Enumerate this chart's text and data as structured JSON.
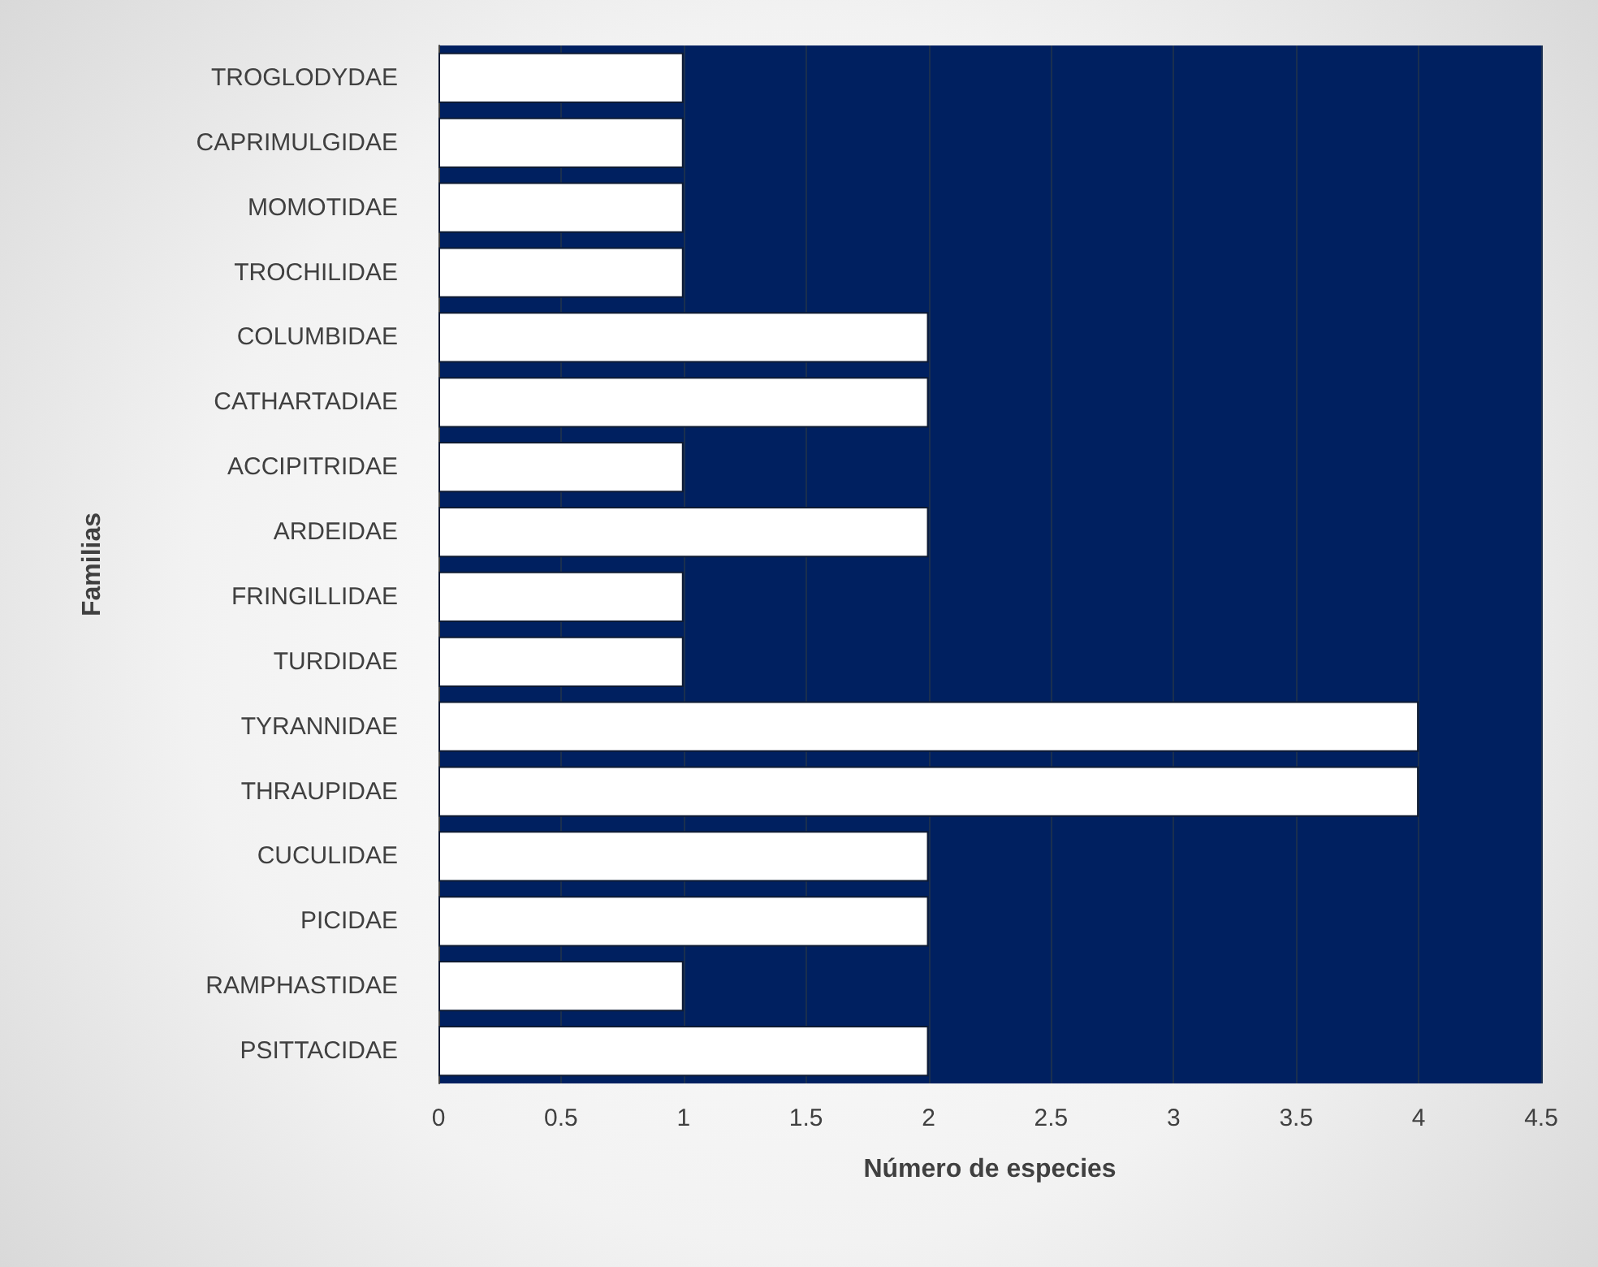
{
  "chart_data": {
    "type": "bar",
    "orientation": "horizontal",
    "xlabel": "Número de especies",
    "ylabel": "Familias",
    "categories": [
      "TROGLODYDAE",
      "CAPRIMULGIDAE",
      "MOMOTIDAE",
      "TROCHILIDAE",
      "COLUMBIDAE",
      "CATHARTADIAE",
      "ACCIPITRIDAE",
      "ARDEIDAE",
      "FRINGILLIDAE",
      "TURDIDAE",
      "TYRANNIDAE",
      "THRAUPIDAE",
      "CUCULIDAE",
      "PICIDAE",
      "RAMPHASTIDAE",
      "PSITTACIDAE"
    ],
    "values": [
      1,
      1,
      1,
      1,
      2,
      2,
      1,
      2,
      1,
      1,
      4,
      4,
      2,
      2,
      1,
      2
    ],
    "color": "#ffffff",
    "xlim": [
      0,
      4.5
    ],
    "xticks": [
      0,
      0.5,
      1,
      1.5,
      2,
      2.5,
      3,
      3.5,
      4,
      4.5
    ],
    "grid": "x"
  }
}
